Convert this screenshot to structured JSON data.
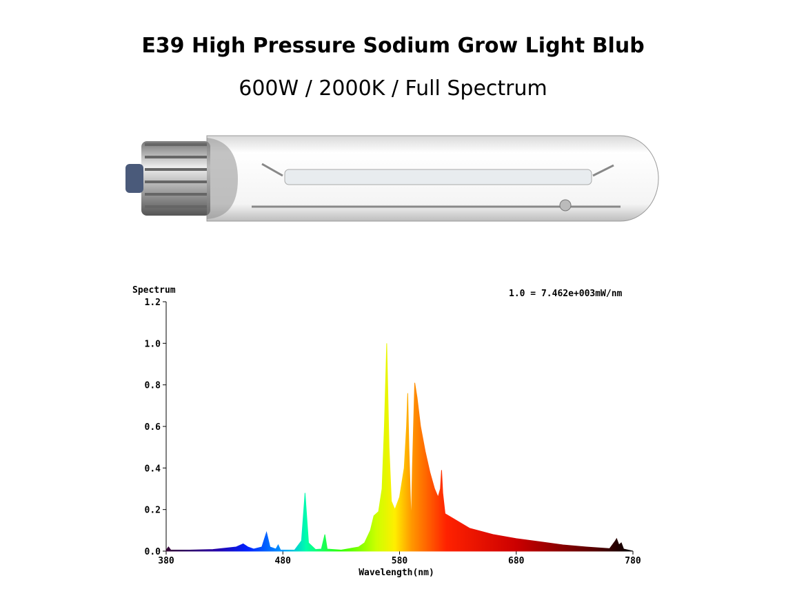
{
  "chart_data": {
    "type": "area",
    "title": "E39 High Pressure Sodium Grow Light Blub",
    "subtitle": "600W / 2000K / Full Spectrum",
    "y_label": "Spectrum",
    "x_label": "Wavelength(nm)",
    "annotation": "1.0 = 7.462e+003mW/nm",
    "x": [
      380,
      382,
      384,
      400,
      420,
      440,
      446,
      450,
      455,
      462,
      466,
      469,
      474,
      476,
      478,
      490,
      496,
      499,
      502,
      508,
      513,
      516,
      518,
      530,
      545,
      550,
      555,
      558,
      562,
      565,
      567,
      569,
      571,
      573,
      576,
      580,
      584,
      586,
      587,
      588,
      590,
      591,
      593,
      595,
      598,
      602,
      606,
      610,
      613,
      615,
      616,
      617,
      619,
      625,
      640,
      660,
      680,
      700,
      720,
      740,
      760,
      765,
      766,
      768,
      770,
      772,
      780
    ],
    "values": [
      0.005,
      0.02,
      0.005,
      0.005,
      0.008,
      0.02,
      0.035,
      0.02,
      0.01,
      0.02,
      0.09,
      0.02,
      0.01,
      0.03,
      0.005,
      0.005,
      0.05,
      0.28,
      0.04,
      0.008,
      0.01,
      0.08,
      0.01,
      0.005,
      0.02,
      0.04,
      0.1,
      0.17,
      0.19,
      0.3,
      0.6,
      1.0,
      0.5,
      0.24,
      0.2,
      0.26,
      0.4,
      0.6,
      0.76,
      0.5,
      0.13,
      0.4,
      0.81,
      0.74,
      0.6,
      0.48,
      0.38,
      0.3,
      0.26,
      0.3,
      0.39,
      0.28,
      0.18,
      0.16,
      0.11,
      0.08,
      0.06,
      0.045,
      0.03,
      0.02,
      0.012,
      0.05,
      0.06,
      0.03,
      0.04,
      0.01,
      0
    ],
    "xlim": [
      380,
      780
    ],
    "ylim": [
      0,
      1.2
    ],
    "xticks": [
      380,
      480,
      580,
      680,
      780
    ],
    "yticks": [
      {
        "value": 0,
        "label": "0.0"
      },
      0.2,
      0.4,
      0.6,
      0.8,
      {
        "value": 1,
        "label": "1.0"
      },
      1.2
    ]
  }
}
